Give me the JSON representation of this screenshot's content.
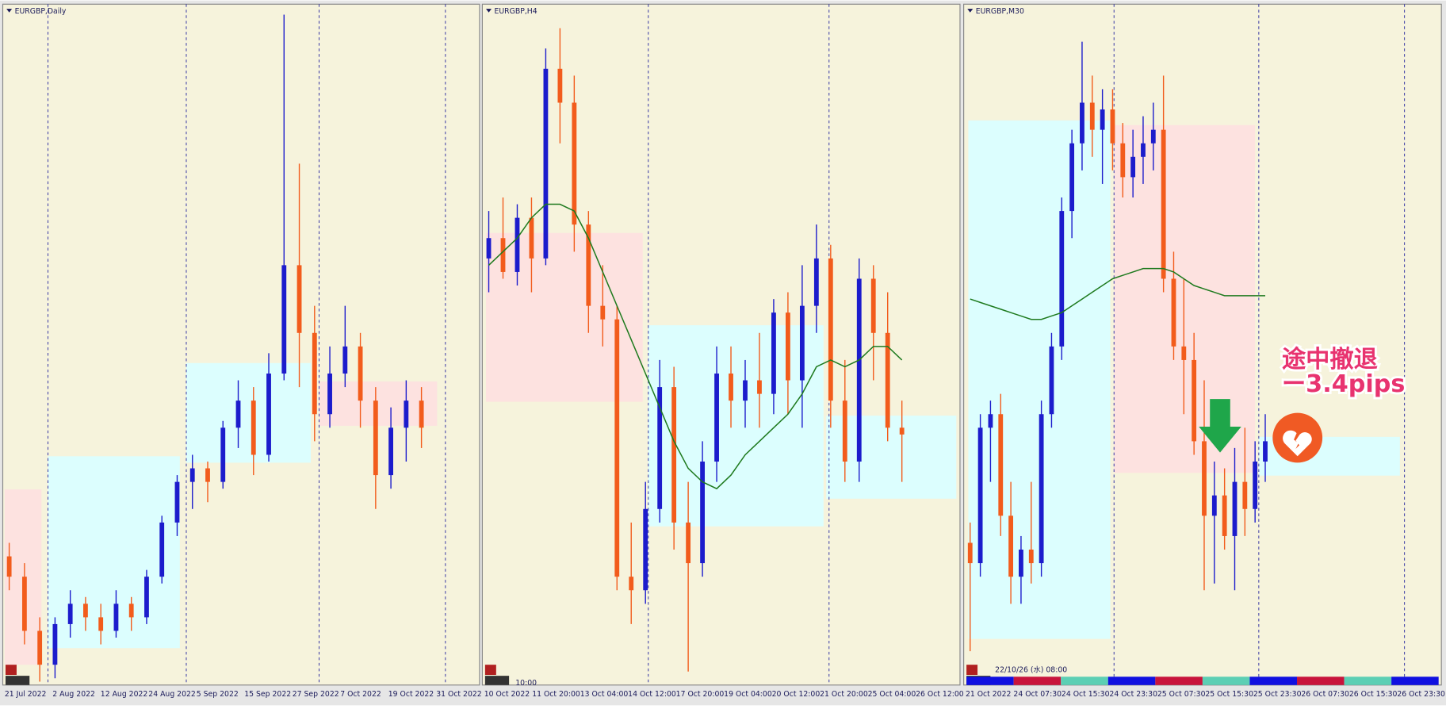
{
  "panels": [
    {
      "title": "EURGBP,Daily",
      "type": "candlestick",
      "ylim": [
        0,
        100
      ],
      "x_labels": [
        "21 Jul 2022",
        "2 Aug 2022",
        "12 Aug 2022",
        "24 Aug 2022",
        "5 Sep 2022",
        "15 Sep 2022",
        "27 Sep 2022",
        "7 Oct 2022",
        "19 Oct 2022",
        "31 Oct 2022"
      ],
      "candles": [
        [
          19,
          21,
          14,
          16
        ],
        [
          16,
          18,
          6,
          8
        ],
        [
          8,
          10,
          0.5,
          3
        ],
        [
          3,
          10,
          1,
          9
        ],
        [
          9,
          14,
          7,
          12
        ],
        [
          12,
          13,
          8,
          10
        ],
        [
          10,
          12,
          6,
          8
        ],
        [
          8,
          14,
          7,
          12
        ],
        [
          12,
          13,
          8,
          10
        ],
        [
          10,
          17,
          9,
          16
        ],
        [
          16,
          25,
          15,
          24
        ],
        [
          24,
          31,
          22,
          30
        ],
        [
          30,
          34,
          26,
          32
        ],
        [
          32,
          33,
          27,
          30
        ],
        [
          30,
          39,
          29,
          38
        ],
        [
          38,
          45,
          35,
          42
        ],
        [
          42,
          44,
          31,
          34
        ],
        [
          34,
          49,
          33,
          46
        ],
        [
          46,
          99,
          45,
          62
        ],
        [
          62,
          77,
          44,
          52
        ],
        [
          52,
          56,
          36,
          40
        ],
        [
          40,
          50,
          38,
          46
        ],
        [
          46,
          56,
          44,
          50
        ],
        [
          50,
          52,
          38,
          42
        ],
        [
          42,
          44,
          26,
          31
        ],
        [
          31,
          41,
          29,
          38
        ],
        [
          38,
          45,
          33,
          42
        ],
        [
          42,
          44,
          35,
          38
        ]
      ]
    },
    {
      "title": "EURGBP,H4",
      "type": "candlestick",
      "ylim": [
        0,
        100
      ],
      "time_label": "10:00",
      "x_labels": [
        "10 Oct 2022",
        "11 Oct 20:00",
        "13 Oct 04:00",
        "14 Oct 12:00",
        "17 Oct 20:00",
        "19 Oct 04:00",
        "20 Oct 12:00",
        "21 Oct 20:00",
        "25 Oct 04:00",
        "26 Oct 12:00"
      ],
      "candles": [
        [
          63,
          70,
          58,
          66
        ],
        [
          66,
          72,
          60,
          61
        ],
        [
          61,
          71,
          59,
          69
        ],
        [
          69,
          72,
          58,
          63
        ],
        [
          63,
          94,
          62,
          91
        ],
        [
          91,
          97,
          80,
          86
        ],
        [
          86,
          90,
          64,
          68
        ],
        [
          68,
          70,
          52,
          56
        ],
        [
          56,
          62,
          50,
          54
        ],
        [
          54,
          56,
          14,
          16
        ],
        [
          16,
          24,
          9,
          14
        ],
        [
          14,
          30,
          12,
          26
        ],
        [
          26,
          48,
          24,
          44
        ],
        [
          44,
          47,
          20,
          24
        ],
        [
          24,
          30,
          2,
          18
        ],
        [
          18,
          36,
          16,
          33
        ],
        [
          33,
          50,
          30,
          46
        ],
        [
          46,
          50,
          38,
          42
        ],
        [
          42,
          48,
          38,
          45
        ],
        [
          45,
          52,
          38,
          43
        ],
        [
          43,
          57,
          40,
          55
        ],
        [
          55,
          58,
          40,
          45
        ],
        [
          45,
          62,
          38,
          56
        ],
        [
          56,
          68,
          52,
          63
        ],
        [
          63,
          65,
          38,
          42
        ],
        [
          42,
          48,
          30,
          33
        ],
        [
          33,
          63,
          30,
          60
        ],
        [
          60,
          62,
          45,
          52
        ],
        [
          52,
          58,
          36,
          38
        ],
        [
          38,
          42,
          30,
          37
        ]
      ],
      "ma": [
        62,
        64,
        66,
        69,
        71,
        71,
        70,
        66,
        61,
        56,
        51,
        46,
        41,
        36,
        32,
        30,
        29,
        31,
        34,
        36,
        38,
        40,
        43,
        47,
        48,
        47,
        48,
        50,
        50,
        48
      ]
    },
    {
      "title": "EURGBP,M30",
      "type": "candlestick",
      "ylim": [
        0,
        100
      ],
      "time_label": "22/10/26 (水) 08:00",
      "x_labels": [
        "21 Oct 2022",
        "24 Oct 07:30",
        "24 Oct 15:30",
        "24 Oct 23:30",
        "25 Oct 07:30",
        "25 Oct 15:30",
        "25 Oct 23:30",
        "26 Oct 07:30",
        "26 Oct 15:30",
        "26 Oct 23:30"
      ],
      "candles": [
        [
          21,
          24,
          5,
          18
        ],
        [
          18,
          40,
          16,
          38
        ],
        [
          38,
          42,
          30,
          40
        ],
        [
          40,
          43,
          22,
          25
        ],
        [
          25,
          30,
          12,
          16
        ],
        [
          16,
          22,
          12,
          20
        ],
        [
          20,
          30,
          15,
          18
        ],
        [
          18,
          42,
          16,
          40
        ],
        [
          40,
          52,
          38,
          50
        ],
        [
          50,
          72,
          48,
          70
        ],
        [
          70,
          82,
          66,
          80
        ],
        [
          80,
          95,
          76,
          86
        ],
        [
          86,
          90,
          78,
          82
        ],
        [
          82,
          88,
          74,
          85
        ],
        [
          85,
          88,
          76,
          80
        ],
        [
          80,
          83,
          72,
          75
        ],
        [
          75,
          82,
          72,
          78
        ],
        [
          78,
          84,
          74,
          80
        ],
        [
          80,
          86,
          76,
          82
        ],
        [
          82,
          90,
          58,
          60
        ],
        [
          60,
          64,
          48,
          50
        ],
        [
          50,
          60,
          40,
          48
        ],
        [
          48,
          52,
          34,
          36
        ],
        [
          36,
          45,
          14,
          25
        ],
        [
          25,
          33,
          15,
          28
        ],
        [
          28,
          32,
          20,
          22
        ],
        [
          22,
          35,
          14,
          30
        ],
        [
          30,
          38,
          22,
          26
        ],
        [
          26,
          36,
          24,
          33
        ],
        [
          33,
          40,
          30,
          36
        ]
      ],
      "ma": [
        57,
        56.5,
        56,
        55.5,
        55,
        54.5,
        54,
        54,
        54.5,
        55,
        56,
        57,
        58,
        59,
        60,
        60.5,
        61,
        61.5,
        61.5,
        61.5,
        61,
        60,
        59,
        58.5,
        58,
        57.5,
        57.5,
        57.5,
        57.5,
        57.5
      ],
      "annotation": [
        "途中撤退",
        "ー3.4pips"
      ]
    }
  ]
}
